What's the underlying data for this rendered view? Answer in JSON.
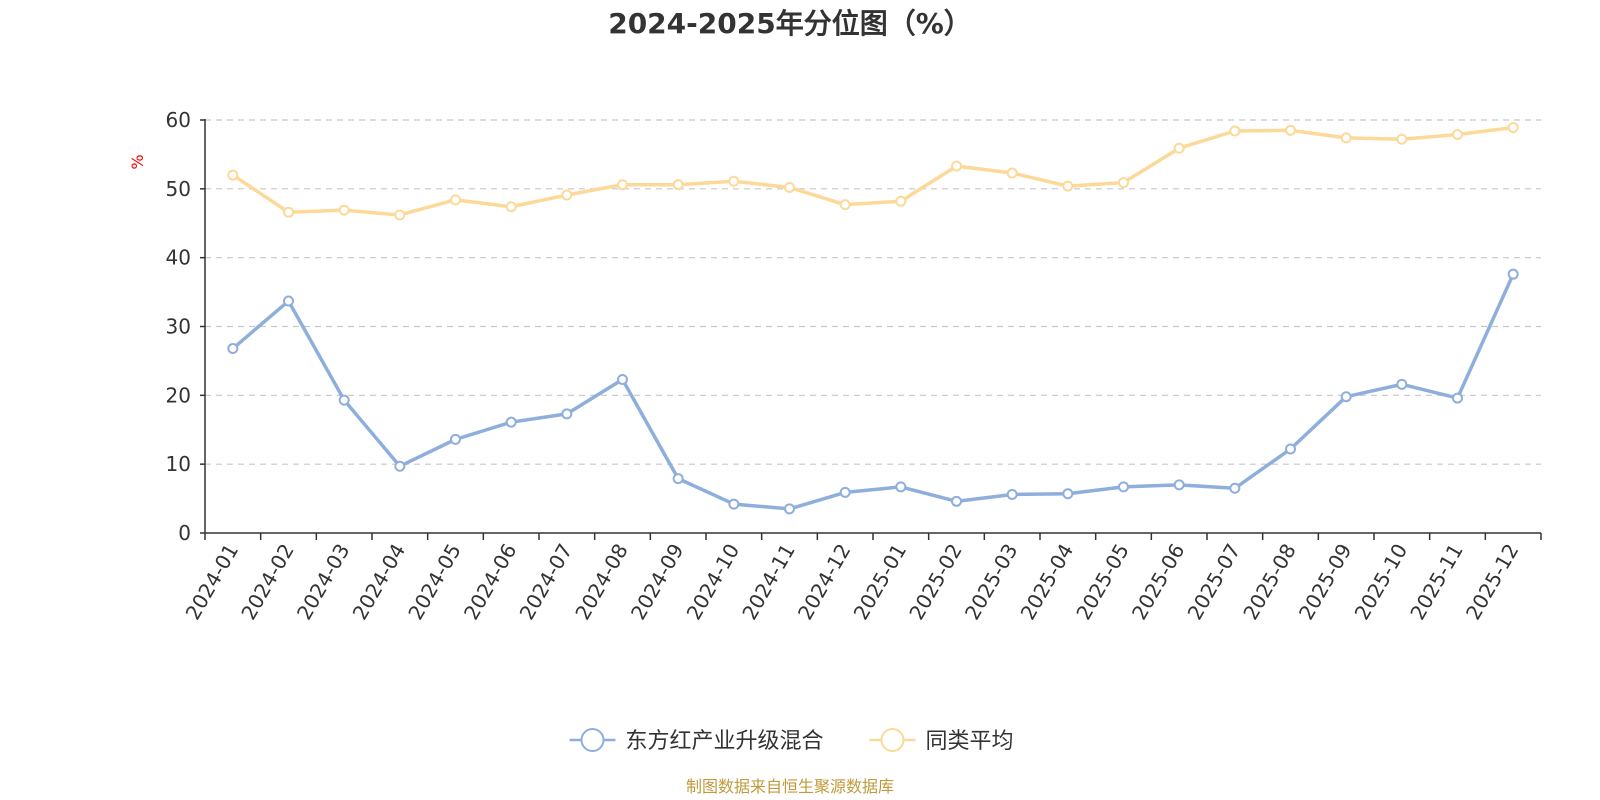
{
  "chart_data": {
    "type": "line",
    "title": "2024-2025年分位图（%）",
    "ylabel": "%",
    "xlabel": "",
    "ylim": [
      0,
      60
    ],
    "yticks": [
      "0",
      "10",
      "20",
      "30",
      "40",
      "50",
      "60"
    ],
    "grid": true,
    "legend_position": "bottom",
    "categories": [
      "2024-01",
      "2024-02",
      "2024-03",
      "2024-04",
      "2024-05",
      "2024-06",
      "2024-07",
      "2024-08",
      "2024-09",
      "2024-10",
      "2024-11",
      "2024-12",
      "2025-01",
      "2025-02",
      "2025-03",
      "2025-04",
      "2025-05",
      "2025-06",
      "2025-07",
      "2025-08",
      "2025-09",
      "2025-10",
      "2025-11",
      "2025-12"
    ],
    "series": [
      {
        "name": "东方红产业升级混合",
        "color": "#8eaedb",
        "values": [
          26.8,
          33.7,
          19.3,
          9.7,
          13.6,
          16.1,
          17.3,
          22.3,
          7.9,
          4.2,
          3.5,
          5.9,
          6.7,
          4.6,
          5.6,
          5.7,
          6.7,
          7.0,
          6.5,
          12.2,
          19.8,
          21.6,
          19.6,
          37.6
        ]
      },
      {
        "name": "同类平均",
        "color": "#fcd999",
        "values": [
          52.0,
          46.6,
          46.9,
          46.2,
          48.4,
          47.4,
          49.1,
          50.6,
          50.6,
          51.1,
          50.2,
          47.7,
          48.2,
          53.3,
          52.3,
          50.4,
          50.9,
          55.9,
          58.4,
          58.5,
          57.4,
          57.2,
          57.9,
          58.9
        ]
      }
    ],
    "source": "制图数据来自恒生聚源数据库",
    "source_color": "#c09a3b"
  }
}
